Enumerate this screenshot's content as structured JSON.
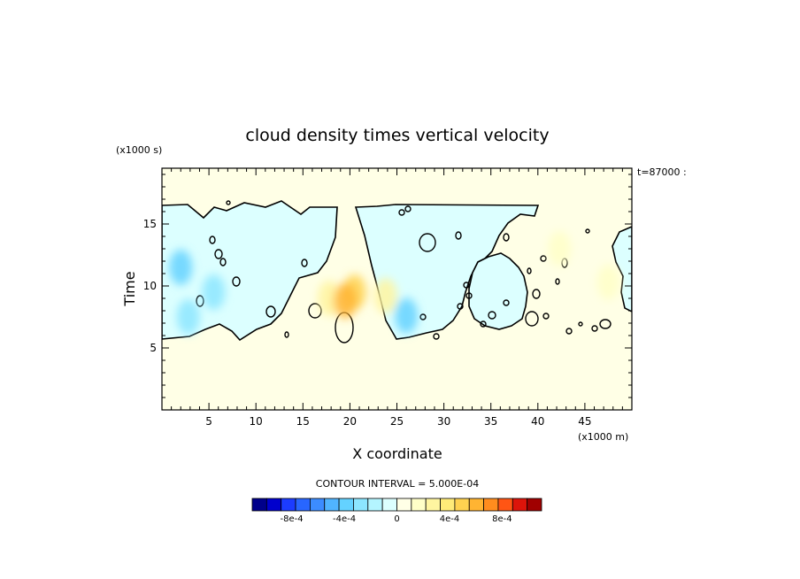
{
  "chart_data": {
    "type": "heatmap",
    "title": "cloud density times vertical velocity",
    "xlabel": "X coordinate",
    "ylabel": "Time",
    "x_units": "(x1000 m)",
    "y_units": "(x1000 s)",
    "time_note": "t=87000 :",
    "contour_interval": "CONTOUR INTERVAL = 5.000E-04",
    "xlim": [
      0,
      50
    ],
    "ylim": [
      0,
      19.5
    ],
    "x_ticks": [
      5,
      10,
      15,
      20,
      25,
      30,
      35,
      40,
      45
    ],
    "y_ticks": [
      5,
      10,
      15
    ],
    "grid": false,
    "colorbar": {
      "labels": [
        "-8e-4",
        "-4e-4",
        "0",
        "4e-4",
        "8e-4"
      ],
      "label_values": [
        -0.0008,
        -0.0004,
        0,
        0.0004,
        0.0008
      ],
      "min": -0.0011,
      "max": 0.0011,
      "colors": [
        "#00008b",
        "#0000cd",
        "#1c3cff",
        "#2866ff",
        "#3c8cff",
        "#50b4ff",
        "#64d2ff",
        "#8ce6ff",
        "#b4f5ff",
        "#dcffff",
        "#ffffe6",
        "#ffffc8",
        "#fff5a0",
        "#ffeb78",
        "#ffd250",
        "#ffb432",
        "#ff8c1e",
        "#ff5514",
        "#dc140a",
        "#a00000"
      ]
    },
    "background_value": 0.0001,
    "cloud_region_value": -5e-05,
    "features": [
      {
        "x": 20.5,
        "y": 9.5,
        "value": 0.00045
      },
      {
        "x": 17.8,
        "y": 9.0,
        "value": 0.0003
      },
      {
        "x": 23.8,
        "y": 9.2,
        "value": 0.00025
      },
      {
        "x": 19.5,
        "y": 8.8,
        "value": 0.0006
      },
      {
        "x": 2.0,
        "y": 11.5,
        "value": -0.00035
      },
      {
        "x": 5.5,
        "y": 9.5,
        "value": -0.0003
      },
      {
        "x": 2.8,
        "y": 7.5,
        "value": -0.00025
      },
      {
        "x": 26.0,
        "y": 7.6,
        "value": -0.0004
      },
      {
        "x": 42.3,
        "y": 13.0,
        "value": 0.0002
      },
      {
        "x": 47.5,
        "y": 10.3,
        "value": 0.00015
      }
    ]
  }
}
